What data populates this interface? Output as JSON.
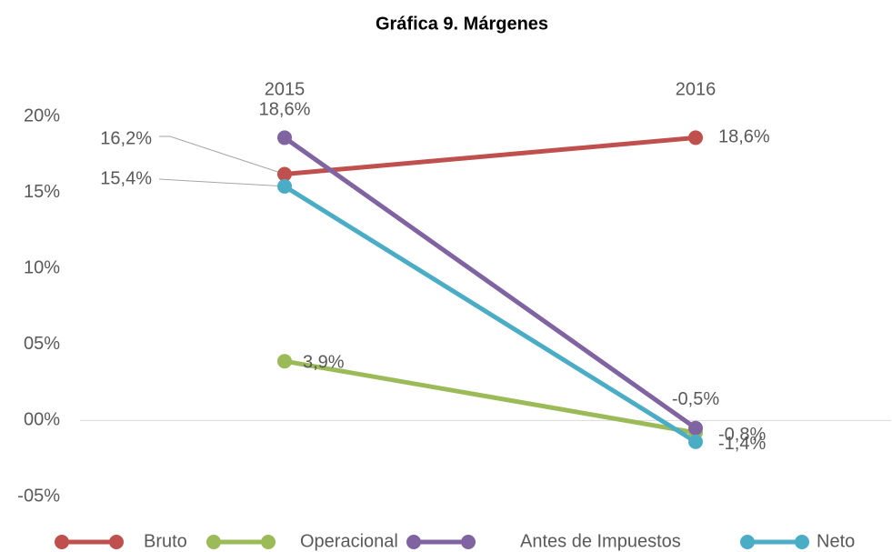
{
  "chart_data": {
    "type": "line",
    "title": "Gráfica 9. Márgenes",
    "categories": [
      "2015",
      "2016"
    ],
    "series": [
      {
        "name": "Bruto",
        "color": "#c0504d",
        "values": [
          16.2,
          18.6
        ],
        "value_labels": [
          "16,2%",
          "18,6%"
        ]
      },
      {
        "name": "Operacional",
        "color": "#9bbb59",
        "values": [
          3.9,
          -0.8
        ],
        "value_labels": [
          "3,9%",
          "-0,8%"
        ]
      },
      {
        "name": "Antes de Impuestos",
        "color": "#8064a2",
        "values": [
          18.6,
          -0.5
        ],
        "value_labels": [
          "18,6%",
          "-0,5%"
        ]
      },
      {
        "name": "Neto",
        "color": "#4bacc6",
        "values": [
          15.4,
          -1.4
        ],
        "value_labels": [
          "15,4%",
          "-1,4%"
        ]
      }
    ],
    "ylim": [
      -5,
      20
    ],
    "yticks": [
      {
        "value": -5,
        "label": "-05%"
      },
      {
        "value": 0,
        "label": "00%"
      },
      {
        "value": 5,
        "label": "05%"
      },
      {
        "value": 10,
        "label": "10%"
      },
      {
        "value": 15,
        "label": "15%"
      },
      {
        "value": 20,
        "label": "20%"
      }
    ],
    "legend": "bottom"
  }
}
